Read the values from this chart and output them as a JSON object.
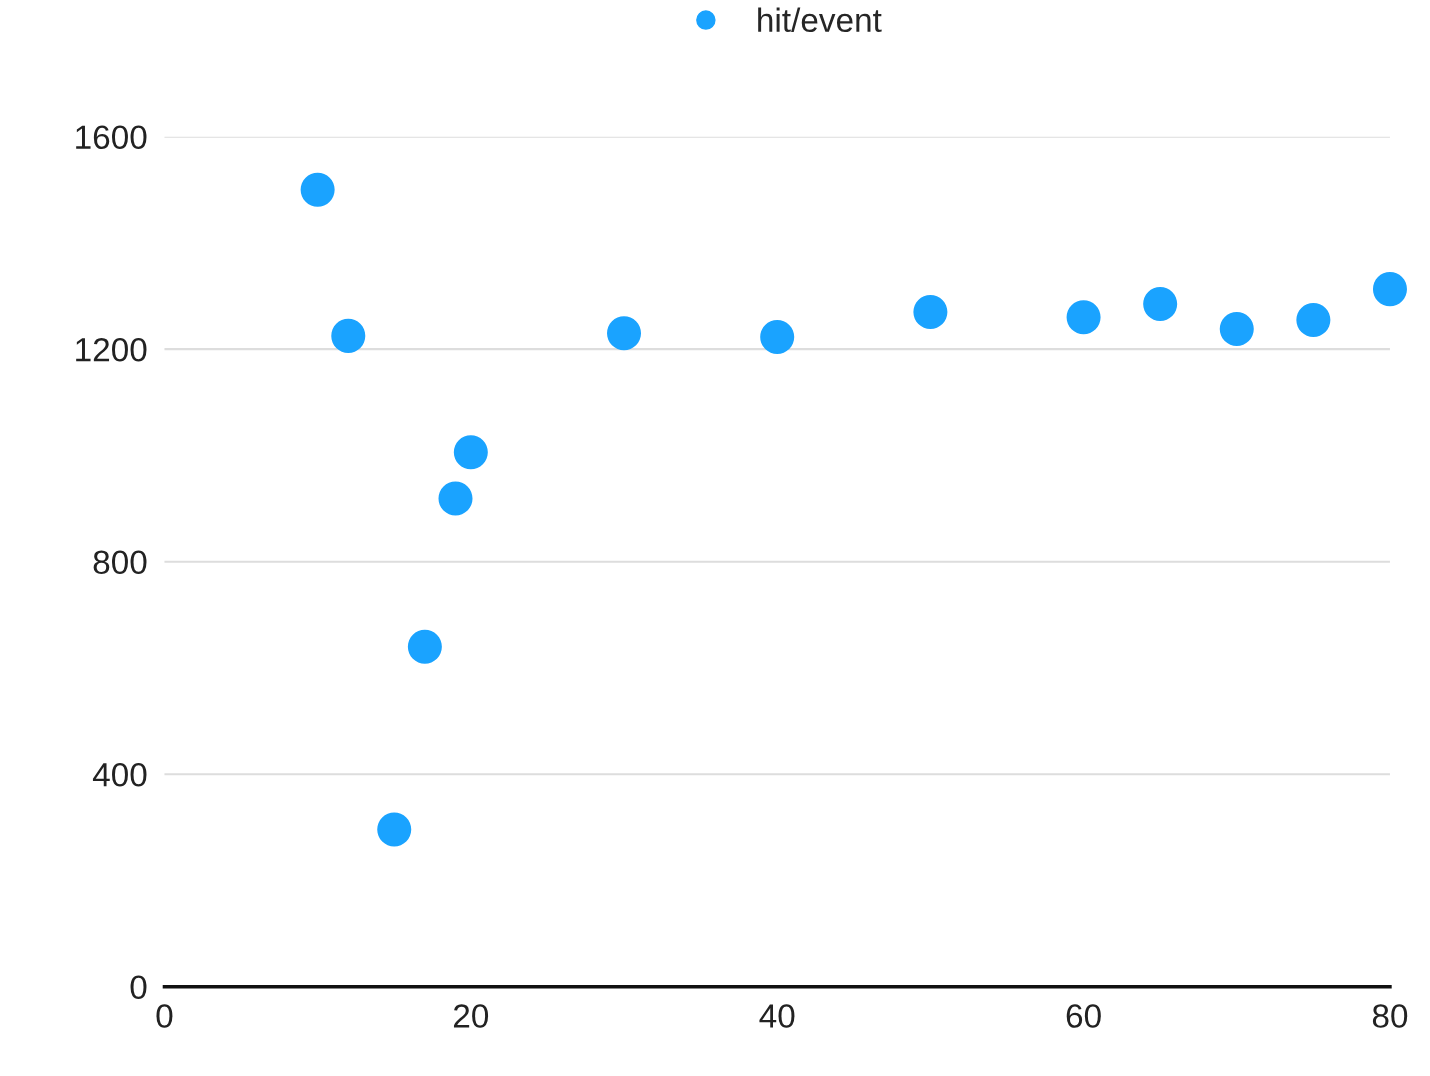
{
  "chart_data": {
    "type": "scatter",
    "x": [
      10,
      12,
      15,
      17,
      19,
      20,
      30,
      40,
      50,
      60,
      65,
      70,
      75,
      80
    ],
    "series": [
      {
        "name": "hit/event",
        "color": "#1aa3ff",
        "values": [
          1500,
          1225,
          296,
          640,
          919,
          1006,
          1230,
          1223,
          1270,
          1260,
          1285,
          1238,
          1255,
          1313
        ]
      }
    ],
    "xlim": [
      0,
      80
    ],
    "xticks": [
      0,
      20,
      40,
      60,
      80
    ],
    "ylim": [
      0,
      1600
    ],
    "yticks": [
      0,
      400,
      800,
      1200,
      1600
    ],
    "grid": "y",
    "legend": "top",
    "marker": "circle"
  }
}
